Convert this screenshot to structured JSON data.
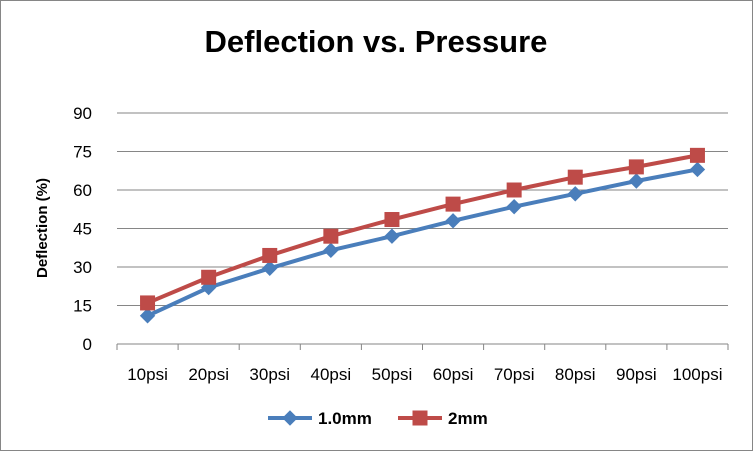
{
  "chart_data": {
    "type": "line",
    "title": "Deflection vs. Pressure",
    "xlabel": "",
    "ylabel": "Deflection (%)",
    "ylim": [
      0,
      90
    ],
    "yticks": [
      0,
      15,
      30,
      45,
      60,
      75,
      90
    ],
    "grid": true,
    "legend_position": "bottom",
    "categories": [
      "10psi",
      "20psi",
      "30psi",
      "40psi",
      "50psi",
      "60psi",
      "70psi",
      "80psi",
      "90psi",
      "100psi"
    ],
    "series": [
      {
        "name": "1.0mm",
        "color": "#4a7ebb",
        "marker": "diamond",
        "values": [
          11,
          22,
          29.5,
          36.5,
          42,
          48,
          53.5,
          58.5,
          63.5,
          68
        ]
      },
      {
        "name": "2mm",
        "color": "#be4b48",
        "marker": "square",
        "values": [
          16,
          26,
          34.5,
          42,
          48.5,
          54.5,
          60,
          65,
          69,
          73.5
        ]
      }
    ]
  }
}
